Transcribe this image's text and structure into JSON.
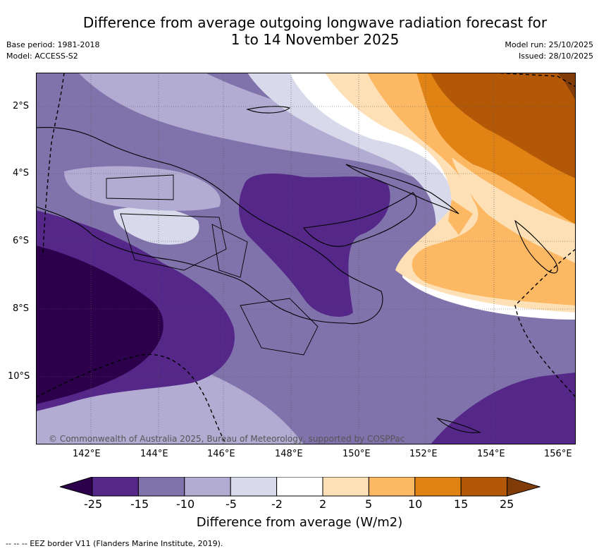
{
  "header": {
    "title_line1": "Difference from average outgoing longwave radiation forecast for",
    "title_line2": "1 to 14 November 2025",
    "base_period": "Base period: 1981-2018",
    "model": "Model: ACCESS-S2",
    "model_run": "Model run: 25/10/2025",
    "issued": "Issued: 28/10/2025"
  },
  "map": {
    "lat_labels": [
      "2°S",
      "4°S",
      "6°S",
      "8°S",
      "10°S"
    ],
    "lon_labels": [
      "142°E",
      "144°E",
      "146°E",
      "148°E",
      "150°E",
      "152°E",
      "154°E",
      "156°E"
    ],
    "copyright": "© Commonwealth of Australia 2025, Bureau of Meteorology, supported by COSPPac",
    "region_icons": [
      "new-guinea-coastline",
      "new-britain-coastline",
      "bougainville-coastline",
      "eez-border-dashed"
    ]
  },
  "colorbar": {
    "label": "Difference from average (W/m2)",
    "ticks": [
      "-25",
      "-15",
      "-10",
      "-5",
      "-2",
      "2",
      "5",
      "10",
      "15",
      "25"
    ],
    "colors": [
      "#2d004b",
      "#542788",
      "#8073ac",
      "#b2abd2",
      "#d8daeb",
      "#ffffff",
      "#fee0b6",
      "#fdb863",
      "#e08214",
      "#b35806",
      "#7f3b08"
    ]
  },
  "footer": {
    "legend_symbol": "-- --",
    "legend_text": "-- EEZ border V11 (Flanders Marine Institute, 2019)."
  }
}
